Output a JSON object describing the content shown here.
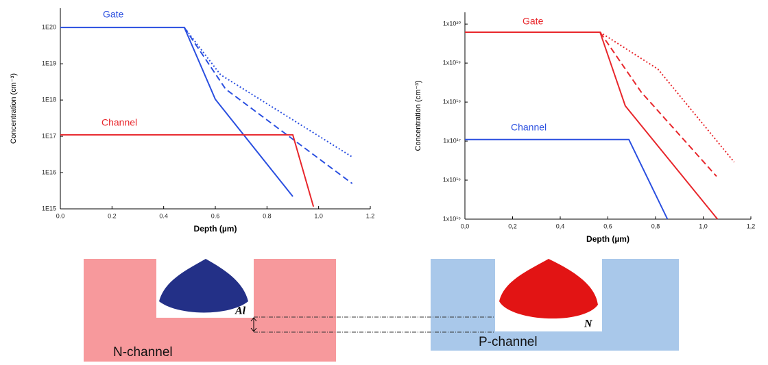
{
  "chart_data": [
    {
      "type": "line",
      "log_y": true,
      "xlabel": "Depth (µm)",
      "ylabel": "Concentration (cm⁻³)",
      "xlim": [
        0,
        1.2
      ],
      "ylim": [
        1000000000000000.0,
        3.4e+20
      ],
      "xticks": [
        {
          "value": 0,
          "label": "0.0"
        },
        0.2,
        0.4,
        0.6,
        0.8,
        {
          "value": 1,
          "label": "1.0"
        },
        1.2
      ],
      "yticks": [
        {
          "value": 1000000000000000.0,
          "label": "1E15"
        },
        {
          "value": 1e+16,
          "label": "1E16"
        },
        {
          "value": 1e+17,
          "label": "1E17"
        },
        {
          "value": 1e+18,
          "label": "1E18"
        },
        {
          "value": 1e+19,
          "label": "1E19"
        },
        {
          "value": 1e+20,
          "label": "1E20"
        }
      ],
      "series": [
        {
          "name": "Gate",
          "color": "#2a4fe0",
          "style": "solid",
          "x": [
            0,
            0.48,
            0.6,
            0.9
          ],
          "values": [
            1e+20,
            1e+20,
            1.05e+18,
            2200000000000000.0
          ]
        },
        {
          "color": "#2a4fe0",
          "style": "dashed",
          "x": [
            0.48,
            0.64,
            1.13
          ],
          "values": [
            1e+20,
            2e+18,
            5000000000000000.0
          ]
        },
        {
          "color": "#2a4fe0",
          "style": "dotted",
          "x": [
            0.48,
            0.62,
            1.13
          ],
          "values": [
            1e+20,
            5e+18,
            2.7e+16
          ]
        },
        {
          "name": "Channel",
          "color": "#e8262b",
          "style": "solid",
          "x": [
            0,
            0.9,
            0.98
          ],
          "values": [
            1.1e+17,
            1.1e+17,
            1150000000000000.0
          ]
        }
      ]
    },
    {
      "type": "line",
      "log_y": true,
      "xlabel": "Depth (µm)",
      "ylabel": "Concentration (cm⁻³)",
      "xlim": [
        0,
        1.2
      ],
      "ylim": [
        1000000000000000.0,
        2e+20
      ],
      "xticks": [
        {
          "value": 0,
          "label": "0,0"
        },
        {
          "value": 0.2,
          "label": "0,2"
        },
        {
          "value": 0.4,
          "label": "0,4"
        },
        {
          "value": 0.6,
          "label": "0,6"
        },
        {
          "value": 0.8,
          "label": "0,8"
        },
        {
          "value": 1,
          "label": "1,0"
        },
        {
          "value": 1.2,
          "label": "1,2"
        }
      ],
      "yticks": [
        {
          "value": 1000000000000000.0,
          "label": "1x10¹⁵"
        },
        {
          "value": 1e+16,
          "label": "1x10¹⁶"
        },
        {
          "value": 1e+17,
          "label": "1x10¹⁷"
        },
        {
          "value": 1e+18,
          "label": "1x10¹⁸"
        },
        {
          "value": 1e+19,
          "label": "1x10¹⁹"
        },
        {
          "value": 1e+20,
          "label": "1x10²⁰"
        }
      ],
      "series": [
        {
          "name": "Gate",
          "color": "#e8262b",
          "style": "solid",
          "x": [
            0,
            0.567,
            0.673,
            1.06
          ],
          "values": [
            6.2e+19,
            6.2e+19,
            8e+17,
            1000000000000000.0
          ]
        },
        {
          "color": "#e8262b",
          "style": "dashed",
          "x": [
            0.567,
            0.74,
            1.056
          ],
          "values": [
            6.2e+19,
            1.8e+18,
            1.25e+16
          ]
        },
        {
          "color": "#e8262b",
          "style": "dotted",
          "x": [
            0.567,
            0.81,
            1.13
          ],
          "values": [
            6.2e+19,
            7e+18,
            2.9e+16
          ]
        },
        {
          "name": "Channel",
          "color": "#2a4fe0",
          "style": "solid",
          "x": [
            0,
            0.688,
            0.85
          ],
          "values": [
            1.1e+17,
            1.1e+17,
            1000000000000000.0
          ]
        }
      ]
    }
  ],
  "diagram": {
    "left_label": "N-channel",
    "right_label": "P-channel",
    "left_ion": "Al",
    "right_ion": "N"
  }
}
